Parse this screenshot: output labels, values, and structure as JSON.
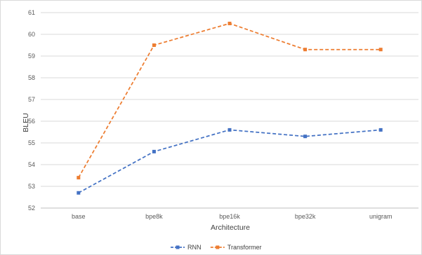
{
  "chart_data": {
    "type": "line",
    "categories": [
      "base",
      "bpe8k",
      "bpe16k",
      "bpe32k",
      "unigram"
    ],
    "series": [
      {
        "name": "RNN",
        "values": [
          52.7,
          54.6,
          55.6,
          55.3,
          55.6
        ],
        "color": "#4472C4",
        "line_style": "dashed",
        "marker": "square"
      },
      {
        "name": "Transformer",
        "values": [
          53.4,
          59.5,
          60.5,
          59.3,
          59.3
        ],
        "color": "#ED7D31",
        "line_style": "dashed",
        "marker": "square"
      }
    ],
    "xlabel": "Architecture",
    "ylabel": "BLEU",
    "ylim": [
      52,
      61
    ],
    "yticks": [
      52,
      53,
      54,
      55,
      56,
      57,
      58,
      59,
      60,
      61
    ],
    "grid": true,
    "legend_position": "bottom-center"
  }
}
